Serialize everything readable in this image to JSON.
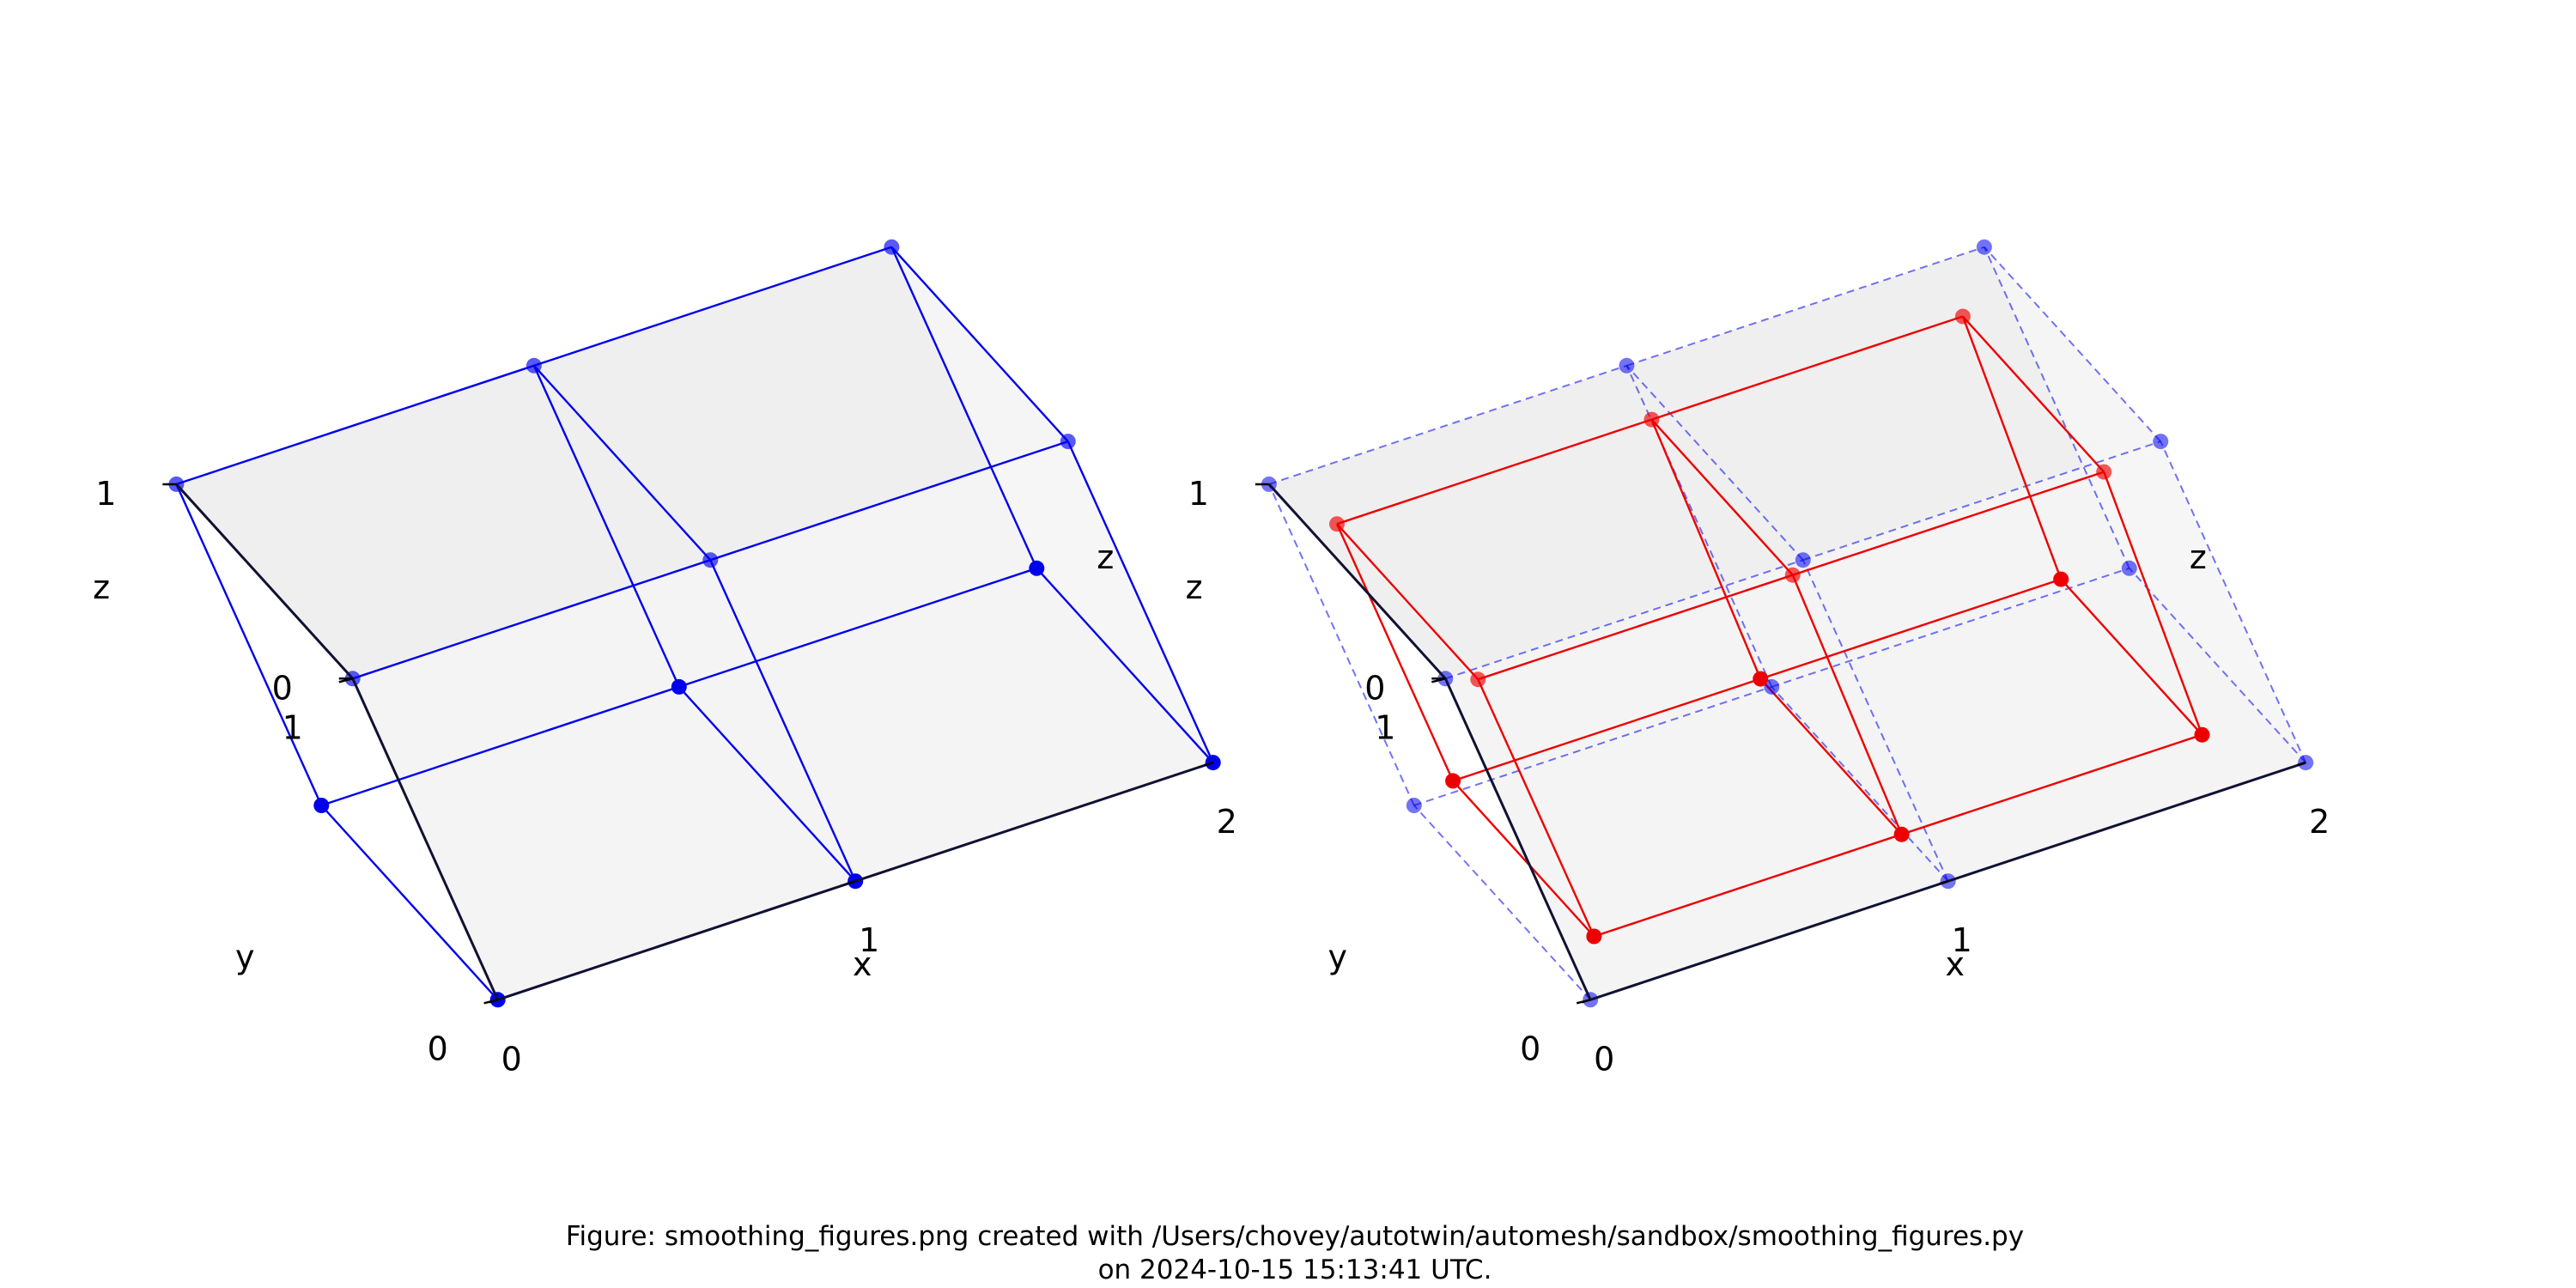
{
  "chart_data": [
    {
      "type": "scatter",
      "title": "",
      "xlabel": "x",
      "ylabel": "y",
      "zlabel": "z",
      "xlim": [
        0,
        2
      ],
      "ylim": [
        0,
        1
      ],
      "zlim": [
        0,
        1
      ],
      "x_ticks": [
        "0",
        "1",
        "2"
      ],
      "y_ticks": [
        "0",
        "1"
      ],
      "z_ticks": [
        "0",
        "1"
      ],
      "grid": false,
      "series": [
        {
          "color": "#0000ee",
          "nodes": [
            [
              0,
              0,
              0
            ],
            [
              1,
              0,
              0
            ],
            [
              2,
              0,
              0
            ],
            [
              0,
              1,
              0
            ],
            [
              1,
              1,
              0
            ],
            [
              2,
              1,
              0
            ],
            [
              0,
              0,
              1
            ],
            [
              1,
              0,
              1
            ],
            [
              2,
              0,
              1
            ],
            [
              0,
              1,
              1
            ],
            [
              1,
              1,
              1
            ],
            [
              2,
              1,
              1
            ]
          ]
        }
      ]
    },
    {
      "type": "scatter",
      "title": "",
      "xlabel": "x",
      "ylabel": "y",
      "zlabel": "z",
      "xlim": [
        0,
        2
      ],
      "ylim": [
        0,
        1
      ],
      "zlim": [
        0,
        1
      ],
      "x_ticks": [
        "0",
        "1",
        "2"
      ],
      "y_ticks": [
        "0",
        "1"
      ],
      "z_ticks": [
        "0",
        "1"
      ],
      "grid": false,
      "series": [
        {
          "color": "#0000ee",
          "style": "dashed",
          "nodes": [
            [
              0,
              0,
              0
            ],
            [
              1,
              0,
              0
            ],
            [
              2,
              0,
              0
            ],
            [
              0,
              1,
              0
            ],
            [
              1,
              1,
              0
            ],
            [
              2,
              1,
              0
            ],
            [
              0,
              0,
              1
            ],
            [
              1,
              0,
              1
            ],
            [
              2,
              0,
              1
            ],
            [
              0,
              1,
              1
            ],
            [
              1,
              1,
              1
            ],
            [
              2,
              1,
              1
            ]
          ]
        },
        {
          "color": "#ee0000",
          "style": "solid",
          "nodes": [
            [
              0.1,
              0.1,
              0.1
            ],
            [
              0.96,
              0.1,
              0.1
            ],
            [
              1.8,
              0.1,
              0.1
            ],
            [
              0.1,
              0.9,
              0.1
            ],
            [
              0.98,
              0.9,
              0.1
            ],
            [
              1.85,
              0.9,
              0.1
            ],
            [
              0.1,
              0.1,
              0.9
            ],
            [
              0.96,
              0.1,
              0.9
            ],
            [
              1.8,
              0.1,
              0.9
            ],
            [
              0.1,
              0.9,
              0.9
            ],
            [
              0.98,
              0.9,
              0.9
            ],
            [
              1.85,
              0.9,
              0.9
            ]
          ]
        }
      ]
    }
  ],
  "caption": {
    "line1": "Figure: smoothing_figures.png created with /Users/chovey/autotwin/automesh/sandbox/smoothing_figures.py",
    "line2": "on 2024-10-15 15:13:41 UTC."
  }
}
